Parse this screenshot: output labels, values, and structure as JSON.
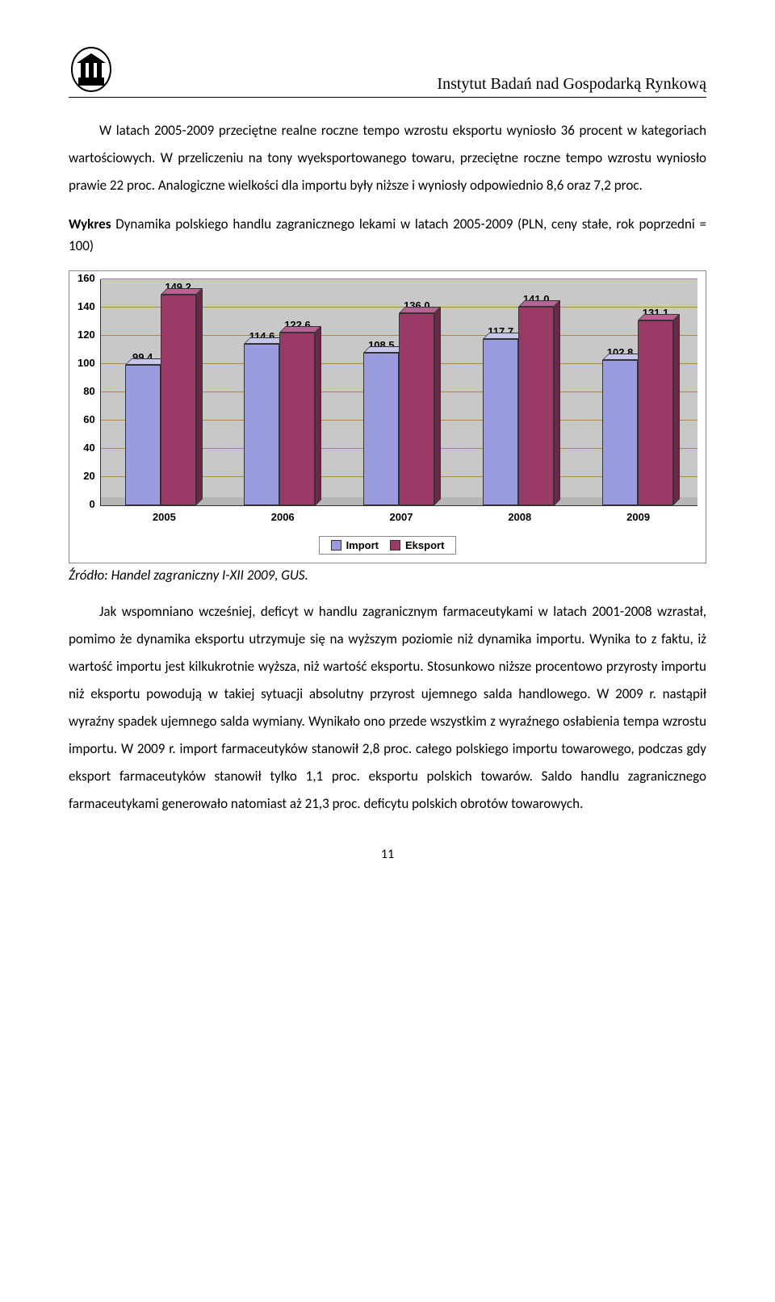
{
  "header": {
    "title": "Instytut Badań nad Gospodarką Rynkową"
  },
  "paragraph1": "W latach 2005-2009 przeciętne realne roczne tempo wzrostu eksportu wyniosło 36 procent w kategoriach wartościowych. W przeliczeniu na tony wyeksportowanego towaru, przeciętne roczne tempo wzrostu wyniosło prawie 22 proc. Analogiczne wielkości dla importu były niższe i wyniosły odpowiednio 8,6 oraz 7,2 proc.",
  "caption_lead": "Wykres",
  "caption_rest": " Dynamika polskiego handlu zagranicznego lekami w latach 2005-2009 (PLN, ceny stałe, rok poprzedni = 100)",
  "chart": {
    "type": "bar",
    "categories": [
      "2005",
      "2006",
      "2007",
      "2008",
      "2009"
    ],
    "series": [
      {
        "name": "Import",
        "color_front": "#9b9bdf",
        "color_top": "#c7c7ee",
        "color_side": "#6c6cb7",
        "values": [
          99.4,
          114.6,
          108.5,
          117.7,
          102.8
        ]
      },
      {
        "name": "Eksport",
        "color_front": "#9a3a66",
        "color_top": "#b76290",
        "color_side": "#6b2747",
        "values": [
          149.2,
          122.6,
          136.0,
          141.0,
          131.1
        ]
      }
    ],
    "value_labels": [
      [
        "99,4",
        "149,2"
      ],
      [
        "114,6",
        "122,6"
      ],
      [
        "108,5",
        "136,0"
      ],
      [
        "117,7",
        "141,0"
      ],
      [
        "102,8",
        "131,1"
      ]
    ],
    "ymax": 160,
    "ytick_step": 20,
    "yticks": [
      "160",
      "140",
      "120",
      "100",
      "80",
      "60",
      "40",
      "20",
      "0"
    ],
    "grid_color": "#b08a3a",
    "plot_bg": "#c8c8c8",
    "floor_color": "#b6b6b6",
    "bg": "#ffffff",
    "legend_labels": [
      "Import",
      "Eksport"
    ]
  },
  "source": "Źródło: Handel zagraniczny I-XII 2009, GUS.",
  "paragraph2": "Jak wspomniano wcześniej, deficyt w handlu zagranicznym farmaceutykami w latach 2001-2008 wzrastał, pomimo że dynamika eksportu utrzymuje się na wyższym poziomie niż dynamika importu. Wynika to z faktu, iż wartość importu jest kilkukrotnie wyższa, niż wartość eksportu. Stosunkowo niższe procentowo przyrosty importu niż eksportu powodują w takiej sytuacji absolutny przyrost ujemnego salda handlowego. W 2009 r. nastąpił wyraźny spadek ujemnego salda wymiany. Wynikało ono przede wszystkim z wyraźnego osłabienia tempa wzrostu importu. W 2009 r. import farmaceutyków stanowił 2,8 proc. całego polskiego importu towarowego, podczas gdy eksport farmaceutyków stanowił tylko 1,1 proc. eksportu polskich towarów. Saldo handlu zagranicznego farmaceutykami generowało natomiast aż 21,3 proc. deficytu polskich obrotów towarowych.",
  "pagenum": "11"
}
